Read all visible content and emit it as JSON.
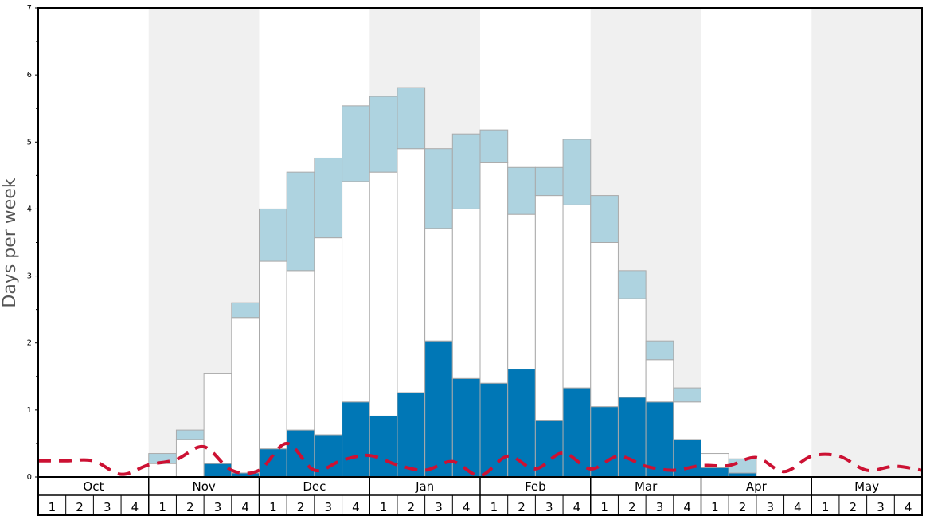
{
  "chart_data": {
    "type": "bar",
    "ylabel": "Days per week",
    "ylim": [
      0,
      7
    ],
    "yticks": [
      "0",
      "1",
      "2",
      "3",
      "4",
      "5",
      "6",
      "7"
    ],
    "months": [
      "Oct",
      "Nov",
      "Dec",
      "Jan",
      "Feb",
      "Mar",
      "Apr",
      "May"
    ],
    "week_labels": [
      "1",
      "2",
      "3",
      "4"
    ],
    "shaded_months": [
      "Nov",
      "Jan",
      "Mar",
      "May"
    ],
    "colors": {
      "dark": "#0077b6",
      "white": "#ffffff",
      "light": "#aed3e0",
      "line": "#cc1133",
      "shade": "#f0f0f0",
      "bar_outline": "#aaaaaa"
    },
    "stacks": [
      {
        "dark": 0,
        "white": 0,
        "light": 0
      },
      {
        "dark": 0,
        "white": 0,
        "light": 0
      },
      {
        "dark": 0,
        "white": 0,
        "light": 0
      },
      {
        "dark": 0,
        "white": 0,
        "light": 0
      },
      {
        "dark": 0,
        "white": 0.2,
        "light": 0.15
      },
      {
        "dark": 0,
        "white": 0.56,
        "light": 0.14
      },
      {
        "dark": 0.2,
        "white": 1.34,
        "light": 0
      },
      {
        "dark": 0.06,
        "white": 2.32,
        "light": 0.22
      },
      {
        "dark": 0.42,
        "white": 2.8,
        "light": 0.78
      },
      {
        "dark": 0.7,
        "white": 2.38,
        "light": 1.47
      },
      {
        "dark": 0.63,
        "white": 2.94,
        "light": 1.19
      },
      {
        "dark": 1.12,
        "white": 3.29,
        "light": 1.13
      },
      {
        "dark": 0.91,
        "white": 3.64,
        "light": 1.13
      },
      {
        "dark": 1.26,
        "white": 3.64,
        "light": 0.91
      },
      {
        "dark": 2.03,
        "white": 1.68,
        "light": 1.19
      },
      {
        "dark": 1.47,
        "white": 2.53,
        "light": 1.12
      },
      {
        "dark": 1.4,
        "white": 3.29,
        "light": 0.49
      },
      {
        "dark": 1.61,
        "white": 2.31,
        "light": 0.7
      },
      {
        "dark": 0.84,
        "white": 3.36,
        "light": 0.42
      },
      {
        "dark": 1.33,
        "white": 2.73,
        "light": 0.98
      },
      {
        "dark": 1.05,
        "white": 2.45,
        "light": 0.7
      },
      {
        "dark": 1.19,
        "white": 1.47,
        "light": 0.42
      },
      {
        "dark": 1.12,
        "white": 0.63,
        "light": 0.28
      },
      {
        "dark": 0.56,
        "white": 0.56,
        "light": 0.21
      },
      {
        "dark": 0.14,
        "white": 0.21,
        "light": 0
      },
      {
        "dark": 0.06,
        "white": 0,
        "light": 0.21
      },
      {
        "dark": 0,
        "white": 0,
        "light": 0
      },
      {
        "dark": 0,
        "white": 0,
        "light": 0
      },
      {
        "dark": 0,
        "white": 0,
        "light": 0
      },
      {
        "dark": 0,
        "white": 0,
        "light": 0
      },
      {
        "dark": 0,
        "white": 0,
        "light": 0
      },
      {
        "dark": 0,
        "white": 0,
        "light": 0
      }
    ],
    "line": [
      0.24,
      0.24,
      0.24,
      0.04,
      0.18,
      0.26,
      0.45,
      0.1,
      0.1,
      0.5,
      0.1,
      0.25,
      0.32,
      0.18,
      0.1,
      0.23,
      0.02,
      0.31,
      0.12,
      0.36,
      0.12,
      0.31,
      0.16,
      0.1,
      0.17,
      0.17,
      0.29,
      0.08,
      0.31,
      0.31,
      0.1,
      0.16,
      0.1
    ]
  }
}
